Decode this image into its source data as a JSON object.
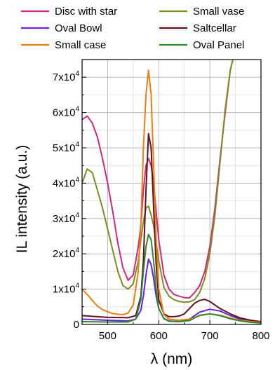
{
  "chart_data": {
    "type": "line",
    "xlabel": "λ (nm)",
    "ylabel": "IL intensity (a.u.)",
    "xlim": [
      450,
      800
    ],
    "ylim": [
      0,
      75000
    ],
    "xticks": [
      500,
      600,
      700,
      800
    ],
    "xtick_labels": [
      "500",
      "600",
      "700",
      "800"
    ],
    "yticks": [
      0,
      10000,
      20000,
      30000,
      40000,
      50000,
      60000,
      70000
    ],
    "ytick_labels": [
      {
        "base": "0",
        "exp": ""
      },
      {
        "base": "1x10",
        "exp": "4"
      },
      {
        "base": "2x10",
        "exp": "4"
      },
      {
        "base": "3x10",
        "exp": "4"
      },
      {
        "base": "4x10",
        "exp": "4"
      },
      {
        "base": "5x10",
        "exp": "4"
      },
      {
        "base": "6x10",
        "exp": "4"
      },
      {
        "base": "7x10",
        "exp": "4"
      }
    ],
    "grid": true,
    "legend_position": "top",
    "series": [
      {
        "name": "Disc with star",
        "color": "#d4267a",
        "x": [
          450,
          460,
          470,
          480,
          490,
          500,
          510,
          520,
          530,
          540,
          550,
          560,
          565,
          570,
          575,
          580,
          585,
          590,
          600,
          610,
          620,
          630,
          640,
          650,
          660,
          670,
          680,
          690,
          700,
          710,
          720,
          730,
          740,
          750
        ],
        "y": [
          58000,
          59000,
          57000,
          53000,
          47000,
          40000,
          32000,
          23000,
          16000,
          12500,
          14000,
          22000,
          28000,
          38000,
          45000,
          47000,
          45000,
          40000,
          24000,
          14000,
          10000,
          8500,
          8000,
          7600,
          7500,
          9000,
          11000,
          15000,
          22000,
          33000,
          47000,
          60000,
          72000,
          78000
        ]
      },
      {
        "name": "Small vase",
        "color": "#808b1e",
        "x": [
          450,
          460,
          470,
          480,
          490,
          500,
          510,
          520,
          530,
          540,
          550,
          560,
          565,
          570,
          575,
          580,
          585,
          590,
          600,
          610,
          620,
          630,
          640,
          650,
          660,
          670,
          680,
          690,
          700,
          710,
          720,
          730,
          740,
          750
        ],
        "y": [
          40000,
          44000,
          43000,
          38000,
          33000,
          27000,
          21000,
          15000,
          11000,
          10000,
          11500,
          18000,
          24000,
          29000,
          33000,
          33500,
          31000,
          28000,
          18000,
          10500,
          8000,
          7000,
          6500,
          6300,
          6400,
          7000,
          9000,
          13000,
          20000,
          31000,
          46000,
          61000,
          72000,
          78000
        ]
      },
      {
        "name": "Oval Bowl",
        "color": "#6a1ee0",
        "x": [
          450,
          500,
          540,
          555,
          565,
          570,
          575,
          580,
          585,
          590,
          595,
          600,
          610,
          620,
          630,
          640,
          650,
          660,
          680,
          700,
          720,
          740,
          760,
          780,
          800
        ],
        "y": [
          1500,
          1200,
          1000,
          1500,
          4000,
          8000,
          14000,
          18500,
          17000,
          13000,
          8000,
          4500,
          1700,
          1000,
          900,
          900,
          1000,
          1500,
          3500,
          4300,
          3800,
          2500,
          1500,
          900,
          700
        ]
      },
      {
        "name": "Saltcellar",
        "color": "#5c1418",
        "x": [
          450,
          500,
          540,
          555,
          565,
          570,
          575,
          580,
          585,
          590,
          595,
          600,
          610,
          620,
          630,
          640,
          650,
          660,
          670,
          680,
          690,
          700,
          720,
          740,
          760,
          780,
          800
        ],
        "y": [
          2500,
          2000,
          1900,
          2500,
          8000,
          18000,
          38000,
          54000,
          50000,
          33000,
          17000,
          7000,
          3000,
          2200,
          2200,
          2400,
          3000,
          4500,
          6000,
          6800,
          7100,
          6500,
          4500,
          3000,
          1800,
          1200,
          800
        ]
      },
      {
        "name": "Small case",
        "color": "#ec7d12",
        "x": [
          450,
          460,
          470,
          480,
          490,
          500,
          510,
          520,
          530,
          540,
          550,
          560,
          565,
          570,
          575,
          580,
          585,
          590,
          595,
          600,
          610,
          620,
          640,
          660,
          680,
          700,
          720,
          740,
          760,
          780,
          800
        ],
        "y": [
          10000,
          8500,
          6800,
          5200,
          4200,
          3600,
          3100,
          2900,
          2800,
          3200,
          5500,
          15000,
          28000,
          50000,
          65000,
          72000,
          65000,
          45000,
          24000,
          10000,
          2800,
          1500,
          1200,
          1500,
          2500,
          3000,
          2600,
          1800,
          1200,
          800,
          600
        ]
      },
      {
        "name": "Oval Panel",
        "color": "#2f8a2f",
        "x": [
          450,
          500,
          540,
          555,
          565,
          570,
          575,
          580,
          585,
          590,
          595,
          600,
          610,
          620,
          640,
          660,
          680,
          700,
          720,
          740,
          760,
          780,
          800
        ],
        "y": [
          800,
          700,
          700,
          1500,
          7000,
          15000,
          22000,
          25500,
          24000,
          18000,
          10000,
          4500,
          1600,
          900,
          800,
          1100,
          2600,
          3000,
          2500,
          1600,
          1000,
          600,
          400
        ]
      }
    ]
  }
}
